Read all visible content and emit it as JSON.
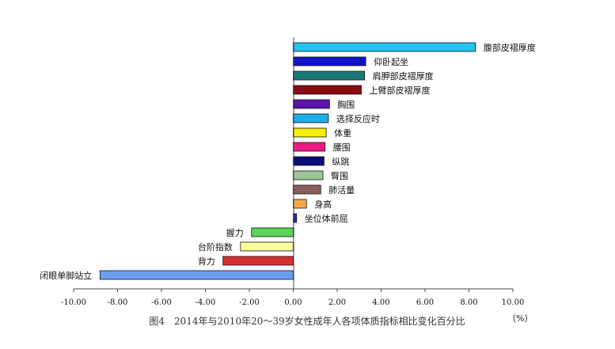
{
  "chart_data": {
    "type": "bar",
    "orientation": "horizontal",
    "title": "图4　2014年与2010年20～39岁女性成年人各项体质指标相比变化百分比",
    "xlabel": "（%）",
    "ylabel": "",
    "xlim": [
      -10,
      10
    ],
    "xticks": [
      -10,
      -8,
      -6,
      -4,
      -2,
      0,
      2,
      4,
      6,
      8,
      10
    ],
    "tick_labels": [
      "-10.00",
      "-8.00",
      "-6.00",
      "-4.00",
      "-2.00",
      "0.00",
      "2.00",
      "4.00",
      "6.00",
      "8.00",
      "10.00"
    ],
    "grid": false,
    "legend": "none",
    "bars": [
      {
        "label": "腹部皮褶厚度",
        "value": 8.3,
        "color": "#22c4f0"
      },
      {
        "label": "仰卧起坐",
        "value": 3.3,
        "color": "#1010c8"
      },
      {
        "label": "肩胛部皮褶厚度",
        "value": 3.25,
        "color": "#1a7a7a"
      },
      {
        "label": "上臂部皮褶厚度",
        "value": 3.1,
        "color": "#8b0a12"
      },
      {
        "label": "胸围",
        "value": 1.65,
        "color": "#5a12a8"
      },
      {
        "label": "选择反应时",
        "value": 1.6,
        "color": "#1eaee8"
      },
      {
        "label": "体重",
        "value": 1.5,
        "color": "#f5f000"
      },
      {
        "label": "腰围",
        "value": 1.45,
        "color": "#ee1a86"
      },
      {
        "label": "纵跳",
        "value": 1.4,
        "color": "#0c0c7a"
      },
      {
        "label": "臀围",
        "value": 1.35,
        "color": "#9fc49c"
      },
      {
        "label": "肺活量",
        "value": 1.25,
        "color": "#8a5e5e"
      },
      {
        "label": "身高",
        "value": 0.6,
        "color": "#f4a64a"
      },
      {
        "label": "坐位体前屈",
        "value": 0.15,
        "color": "#2626c8"
      },
      {
        "label": "握力",
        "value": -1.9,
        "color": "#5ad65a"
      },
      {
        "label": "台阶指数",
        "value": -2.4,
        "color": "#fafa9e"
      },
      {
        "label": "背力",
        "value": -3.2,
        "color": "#d43030"
      },
      {
        "label": "闭眼单脚站立",
        "value": -8.8,
        "color": "#6aa0f0"
      }
    ]
  }
}
